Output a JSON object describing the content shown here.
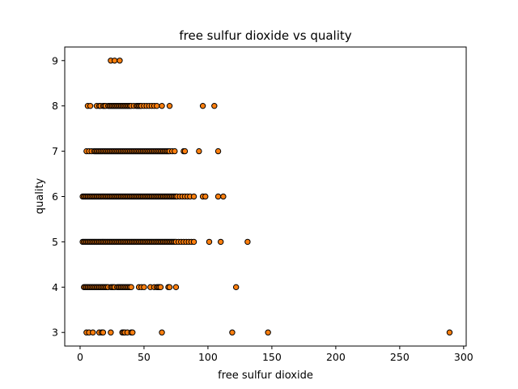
{
  "chart_data": {
    "type": "scatter",
    "title": "free sulfur dioxide vs quality",
    "xlabel": "free sulfur dioxide",
    "ylabel": "quality",
    "xlim": [
      -12,
      302
    ],
    "ylim": [
      2.7,
      9.3
    ],
    "xticks": [
      0,
      50,
      100,
      150,
      200,
      250,
      300
    ],
    "yticks": [
      3,
      4,
      5,
      6,
      7,
      8,
      9
    ],
    "grid": false,
    "marker_fill": "#ff7f0e",
    "marker_edge": "#000000",
    "series": [
      {
        "points": [
          [
            24,
            9
          ],
          [
            27,
            9
          ],
          [
            31,
            9
          ],
          [
            6,
            8
          ],
          [
            8,
            8
          ],
          [
            13,
            8
          ],
          [
            15,
            8
          ],
          [
            16,
            8
          ],
          [
            18,
            8
          ],
          [
            19,
            8
          ],
          [
            20,
            8
          ],
          [
            22,
            8
          ],
          [
            23,
            8
          ],
          [
            24,
            8
          ],
          [
            25,
            8
          ],
          [
            26,
            8
          ],
          [
            27,
            8
          ],
          [
            28,
            8
          ],
          [
            29,
            8
          ],
          [
            30,
            8
          ],
          [
            31,
            8
          ],
          [
            32,
            8
          ],
          [
            33,
            8
          ],
          [
            34,
            8
          ],
          [
            35,
            8
          ],
          [
            36,
            8
          ],
          [
            37,
            8
          ],
          [
            38,
            8
          ],
          [
            39,
            8
          ],
          [
            40,
            8
          ],
          [
            42,
            8
          ],
          [
            44,
            8
          ],
          [
            45,
            8
          ],
          [
            46,
            8
          ],
          [
            47,
            8
          ],
          [
            48,
            8
          ],
          [
            50,
            8
          ],
          [
            52,
            8
          ],
          [
            54,
            8
          ],
          [
            56,
            8
          ],
          [
            58,
            8
          ],
          [
            60,
            8
          ],
          [
            64,
            8
          ],
          [
            70,
            8
          ],
          [
            96,
            8
          ],
          [
            105,
            8
          ],
          [
            5,
            7
          ],
          [
            7,
            7
          ],
          [
            9,
            7
          ],
          [
            11,
            7
          ],
          [
            12,
            7
          ],
          [
            13,
            7
          ],
          [
            14,
            7
          ],
          [
            15,
            7
          ],
          [
            16,
            7
          ],
          [
            17,
            7
          ],
          [
            18,
            7
          ],
          [
            19,
            7
          ],
          [
            20,
            7
          ],
          [
            21,
            7
          ],
          [
            22,
            7
          ],
          [
            23,
            7
          ],
          [
            24,
            7
          ],
          [
            25,
            7
          ],
          [
            26,
            7
          ],
          [
            27,
            7
          ],
          [
            28,
            7
          ],
          [
            29,
            7
          ],
          [
            30,
            7
          ],
          [
            31,
            7
          ],
          [
            32,
            7
          ],
          [
            33,
            7
          ],
          [
            34,
            7
          ],
          [
            35,
            7
          ],
          [
            36,
            7
          ],
          [
            37,
            7
          ],
          [
            38,
            7
          ],
          [
            39,
            7
          ],
          [
            40,
            7
          ],
          [
            41,
            7
          ],
          [
            42,
            7
          ],
          [
            43,
            7
          ],
          [
            44,
            7
          ],
          [
            45,
            7
          ],
          [
            46,
            7
          ],
          [
            47,
            7
          ],
          [
            48,
            7
          ],
          [
            49,
            7
          ],
          [
            50,
            7
          ],
          [
            51,
            7
          ],
          [
            52,
            7
          ],
          [
            53,
            7
          ],
          [
            54,
            7
          ],
          [
            55,
            7
          ],
          [
            56,
            7
          ],
          [
            57,
            7
          ],
          [
            58,
            7
          ],
          [
            59,
            7
          ],
          [
            60,
            7
          ],
          [
            61,
            7
          ],
          [
            62,
            7
          ],
          [
            63,
            7
          ],
          [
            64,
            7
          ],
          [
            65,
            7
          ],
          [
            66,
            7
          ],
          [
            67,
            7
          ],
          [
            68,
            7
          ],
          [
            69,
            7
          ],
          [
            70,
            7
          ],
          [
            72,
            7
          ],
          [
            74,
            7
          ],
          [
            81,
            7
          ],
          [
            82,
            7
          ],
          [
            93,
            7
          ],
          [
            108,
            7
          ],
          [
            2,
            6
          ],
          [
            3,
            6
          ],
          [
            4,
            6
          ],
          [
            5,
            6
          ],
          [
            6,
            6
          ],
          [
            7,
            6
          ],
          [
            8,
            6
          ],
          [
            9,
            6
          ],
          [
            10,
            6
          ],
          [
            11,
            6
          ],
          [
            12,
            6
          ],
          [
            13,
            6
          ],
          [
            14,
            6
          ],
          [
            15,
            6
          ],
          [
            16,
            6
          ],
          [
            17,
            6
          ],
          [
            18,
            6
          ],
          [
            19,
            6
          ],
          [
            20,
            6
          ],
          [
            21,
            6
          ],
          [
            22,
            6
          ],
          [
            23,
            6
          ],
          [
            24,
            6
          ],
          [
            25,
            6
          ],
          [
            26,
            6
          ],
          [
            27,
            6
          ],
          [
            28,
            6
          ],
          [
            29,
            6
          ],
          [
            30,
            6
          ],
          [
            31,
            6
          ],
          [
            32,
            6
          ],
          [
            33,
            6
          ],
          [
            34,
            6
          ],
          [
            35,
            6
          ],
          [
            36,
            6
          ],
          [
            37,
            6
          ],
          [
            38,
            6
          ],
          [
            39,
            6
          ],
          [
            40,
            6
          ],
          [
            41,
            6
          ],
          [
            42,
            6
          ],
          [
            43,
            6
          ],
          [
            44,
            6
          ],
          [
            45,
            6
          ],
          [
            46,
            6
          ],
          [
            47,
            6
          ],
          [
            48,
            6
          ],
          [
            49,
            6
          ],
          [
            50,
            6
          ],
          [
            51,
            6
          ],
          [
            52,
            6
          ],
          [
            53,
            6
          ],
          [
            54,
            6
          ],
          [
            55,
            6
          ],
          [
            56,
            6
          ],
          [
            57,
            6
          ],
          [
            58,
            6
          ],
          [
            59,
            6
          ],
          [
            60,
            6
          ],
          [
            61,
            6
          ],
          [
            62,
            6
          ],
          [
            63,
            6
          ],
          [
            64,
            6
          ],
          [
            65,
            6
          ],
          [
            66,
            6
          ],
          [
            67,
            6
          ],
          [
            68,
            6
          ],
          [
            69,
            6
          ],
          [
            70,
            6
          ],
          [
            71,
            6
          ],
          [
            72,
            6
          ],
          [
            73,
            6
          ],
          [
            74,
            6
          ],
          [
            75,
            6
          ],
          [
            76,
            6
          ],
          [
            78,
            6
          ],
          [
            80,
            6
          ],
          [
            82,
            6
          ],
          [
            84,
            6
          ],
          [
            86,
            6
          ],
          [
            89,
            6
          ],
          [
            96,
            6
          ],
          [
            98,
            6
          ],
          [
            108,
            6
          ],
          [
            112,
            6
          ],
          [
            2,
            5
          ],
          [
            3,
            5
          ],
          [
            4,
            5
          ],
          [
            5,
            5
          ],
          [
            6,
            5
          ],
          [
            7,
            5
          ],
          [
            8,
            5
          ],
          [
            9,
            5
          ],
          [
            10,
            5
          ],
          [
            11,
            5
          ],
          [
            12,
            5
          ],
          [
            13,
            5
          ],
          [
            14,
            5
          ],
          [
            15,
            5
          ],
          [
            16,
            5
          ],
          [
            17,
            5
          ],
          [
            18,
            5
          ],
          [
            19,
            5
          ],
          [
            20,
            5
          ],
          [
            21,
            5
          ],
          [
            22,
            5
          ],
          [
            23,
            5
          ],
          [
            24,
            5
          ],
          [
            25,
            5
          ],
          [
            26,
            5
          ],
          [
            27,
            5
          ],
          [
            28,
            5
          ],
          [
            29,
            5
          ],
          [
            30,
            5
          ],
          [
            31,
            5
          ],
          [
            32,
            5
          ],
          [
            33,
            5
          ],
          [
            34,
            5
          ],
          [
            35,
            5
          ],
          [
            36,
            5
          ],
          [
            37,
            5
          ],
          [
            38,
            5
          ],
          [
            39,
            5
          ],
          [
            40,
            5
          ],
          [
            41,
            5
          ],
          [
            42,
            5
          ],
          [
            43,
            5
          ],
          [
            44,
            5
          ],
          [
            45,
            5
          ],
          [
            46,
            5
          ],
          [
            47,
            5
          ],
          [
            48,
            5
          ],
          [
            49,
            5
          ],
          [
            50,
            5
          ],
          [
            51,
            5
          ],
          [
            52,
            5
          ],
          [
            53,
            5
          ],
          [
            54,
            5
          ],
          [
            55,
            5
          ],
          [
            56,
            5
          ],
          [
            57,
            5
          ],
          [
            58,
            5
          ],
          [
            59,
            5
          ],
          [
            60,
            5
          ],
          [
            61,
            5
          ],
          [
            62,
            5
          ],
          [
            63,
            5
          ],
          [
            64,
            5
          ],
          [
            65,
            5
          ],
          [
            66,
            5
          ],
          [
            67,
            5
          ],
          [
            68,
            5
          ],
          [
            69,
            5
          ],
          [
            70,
            5
          ],
          [
            71,
            5
          ],
          [
            72,
            5
          ],
          [
            73,
            5
          ],
          [
            74,
            5
          ],
          [
            75,
            5
          ],
          [
            77,
            5
          ],
          [
            79,
            5
          ],
          [
            81,
            5
          ],
          [
            83,
            5
          ],
          [
            85,
            5
          ],
          [
            87,
            5
          ],
          [
            89,
            5
          ],
          [
            101,
            5
          ],
          [
            110,
            5
          ],
          [
            131,
            5
          ],
          [
            3,
            4
          ],
          [
            4,
            4
          ],
          [
            5,
            4
          ],
          [
            6,
            4
          ],
          [
            7,
            4
          ],
          [
            8,
            4
          ],
          [
            9,
            4
          ],
          [
            10,
            4
          ],
          [
            11,
            4
          ],
          [
            12,
            4
          ],
          [
            13,
            4
          ],
          [
            14,
            4
          ],
          [
            15,
            4
          ],
          [
            16,
            4
          ],
          [
            17,
            4
          ],
          [
            18,
            4
          ],
          [
            19,
            4
          ],
          [
            20,
            4
          ],
          [
            21,
            4
          ],
          [
            22,
            4
          ],
          [
            24,
            4
          ],
          [
            25,
            4
          ],
          [
            26,
            4
          ],
          [
            27,
            4
          ],
          [
            29,
            4
          ],
          [
            30,
            4
          ],
          [
            31,
            4
          ],
          [
            32,
            4
          ],
          [
            33,
            4
          ],
          [
            34,
            4
          ],
          [
            35,
            4
          ],
          [
            36,
            4
          ],
          [
            37,
            4
          ],
          [
            38,
            4
          ],
          [
            39,
            4
          ],
          [
            40,
            4
          ],
          [
            46,
            4
          ],
          [
            48,
            4
          ],
          [
            50,
            4
          ],
          [
            55,
            4
          ],
          [
            58,
            4
          ],
          [
            60,
            4
          ],
          [
            61,
            4
          ],
          [
            62,
            4
          ],
          [
            63,
            4
          ],
          [
            69,
            4
          ],
          [
            70,
            4
          ],
          [
            75,
            4
          ],
          [
            122,
            4
          ],
          [
            5,
            3
          ],
          [
            7,
            3
          ],
          [
            10,
            3
          ],
          [
            15,
            3
          ],
          [
            17,
            3
          ],
          [
            18,
            3
          ],
          [
            24,
            3
          ],
          [
            33,
            3
          ],
          [
            34,
            3
          ],
          [
            35,
            3
          ],
          [
            37,
            3
          ],
          [
            40,
            3
          ],
          [
            41,
            3
          ],
          [
            64,
            3
          ],
          [
            119,
            3
          ],
          [
            147,
            3
          ],
          [
            289,
            3
          ]
        ]
      }
    ]
  }
}
